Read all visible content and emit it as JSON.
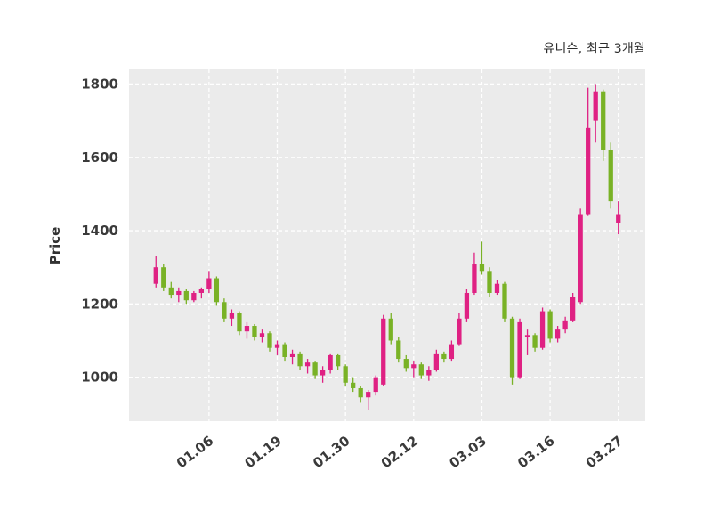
{
  "chart_data": {
    "type": "candlestick",
    "title": "유니슨, 최근 3개월",
    "ylabel": "Price",
    "y_ticks": [
      1000,
      1200,
      1400,
      1600,
      1800
    ],
    "ylim": [
      880,
      1840
    ],
    "grid": true,
    "legend_position": "none",
    "x_tick_rotation": 38,
    "x_ticks": [
      {
        "index": 7,
        "label": "01.06"
      },
      {
        "index": 16,
        "label": "01.19"
      },
      {
        "index": 25,
        "label": "01.30"
      },
      {
        "index": 34,
        "label": "02.12"
      },
      {
        "index": 43,
        "label": "03.03"
      },
      {
        "index": 52,
        "label": "03.16"
      },
      {
        "index": 61,
        "label": "03.27"
      }
    ],
    "colors": {
      "up": "#df2183",
      "down": "#79b226",
      "plot_bg": "#ebebeb",
      "grid": "#ffffff",
      "text": "#3a3a3a"
    },
    "candles": [
      [
        1255,
        1330,
        1245,
        1300
      ],
      [
        1300,
        1310,
        1235,
        1245
      ],
      [
        1245,
        1260,
        1215,
        1225
      ],
      [
        1225,
        1245,
        1205,
        1235
      ],
      [
        1235,
        1240,
        1200,
        1210
      ],
      [
        1210,
        1235,
        1205,
        1230
      ],
      [
        1230,
        1245,
        1215,
        1240
      ],
      [
        1240,
        1290,
        1230,
        1270
      ],
      [
        1270,
        1275,
        1195,
        1205
      ],
      [
        1205,
        1215,
        1150,
        1160
      ],
      [
        1160,
        1185,
        1140,
        1175
      ],
      [
        1175,
        1180,
        1115,
        1125
      ],
      [
        1125,
        1150,
        1105,
        1140
      ],
      [
        1140,
        1145,
        1100,
        1110
      ],
      [
        1110,
        1130,
        1095,
        1120
      ],
      [
        1120,
        1125,
        1070,
        1080
      ],
      [
        1080,
        1100,
        1060,
        1090
      ],
      [
        1090,
        1095,
        1045,
        1055
      ],
      [
        1055,
        1075,
        1035,
        1065
      ],
      [
        1065,
        1070,
        1020,
        1030
      ],
      [
        1030,
        1050,
        1010,
        1040
      ],
      [
        1040,
        1045,
        995,
        1005
      ],
      [
        1005,
        1030,
        985,
        1020
      ],
      [
        1020,
        1065,
        1010,
        1060
      ],
      [
        1060,
        1065,
        1020,
        1030
      ],
      [
        1030,
        1035,
        975,
        985
      ],
      [
        985,
        1000,
        960,
        970
      ],
      [
        970,
        975,
        930,
        945
      ],
      [
        945,
        965,
        910,
        960
      ],
      [
        960,
        1005,
        950,
        1000
      ],
      [
        980,
        1170,
        975,
        1160
      ],
      [
        1160,
        1175,
        1090,
        1100
      ],
      [
        1100,
        1110,
        1040,
        1050
      ],
      [
        1050,
        1060,
        1015,
        1025
      ],
      [
        1025,
        1045,
        1000,
        1035
      ],
      [
        1035,
        1040,
        995,
        1005
      ],
      [
        1005,
        1030,
        990,
        1020
      ],
      [
        1020,
        1075,
        1015,
        1065
      ],
      [
        1065,
        1070,
        1040,
        1050
      ],
      [
        1050,
        1100,
        1045,
        1090
      ],
      [
        1090,
        1175,
        1085,
        1160
      ],
      [
        1160,
        1240,
        1150,
        1230
      ],
      [
        1230,
        1340,
        1225,
        1310
      ],
      [
        1310,
        1370,
        1280,
        1290
      ],
      [
        1290,
        1300,
        1220,
        1230
      ],
      [
        1230,
        1265,
        1225,
        1255
      ],
      [
        1255,
        1260,
        1150,
        1160
      ],
      [
        1160,
        1165,
        980,
        1000
      ],
      [
        1000,
        1160,
        995,
        1150
      ],
      [
        1110,
        1130,
        1060,
        1115
      ],
      [
        1115,
        1120,
        1070,
        1080
      ],
      [
        1080,
        1190,
        1075,
        1180
      ],
      [
        1180,
        1185,
        1095,
        1105
      ],
      [
        1105,
        1140,
        1095,
        1130
      ],
      [
        1130,
        1165,
        1120,
        1155
      ],
      [
        1155,
        1230,
        1150,
        1220
      ],
      [
        1205,
        1460,
        1200,
        1445
      ],
      [
        1445,
        1790,
        1440,
        1680
      ],
      [
        1700,
        1800,
        1640,
        1780
      ],
      [
        1780,
        1785,
        1590,
        1620
      ],
      [
        1620,
        1640,
        1460,
        1480
      ],
      [
        1420,
        1480,
        1390,
        1445
      ]
    ]
  }
}
